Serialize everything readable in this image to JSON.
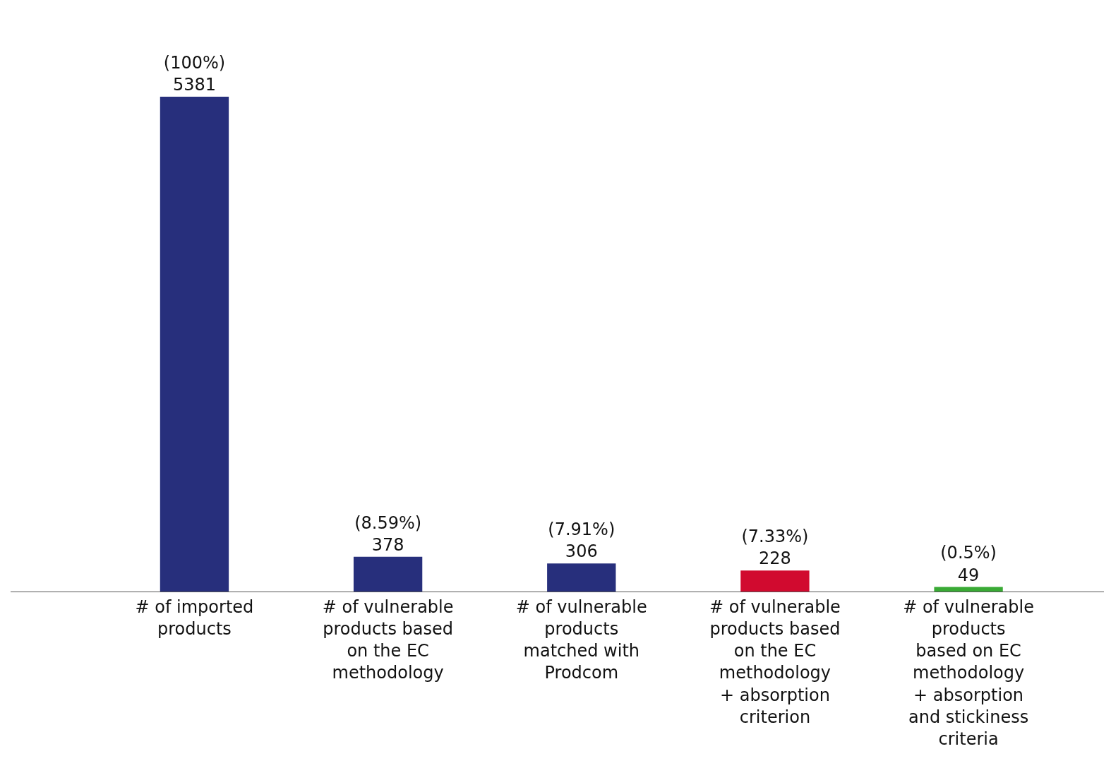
{
  "chart_data": {
    "type": "bar",
    "categories": [
      "# of imported\nproducts",
      "# of vulnerable\nproducts based\non the EC\nmethodology",
      "# of vulnerable\nproducts\nmatched with\nProdcom",
      "# of vulnerable\nproducts based\non the EC\nmethodology\n+ absorption\ncriterion",
      "# of vulnerable\nproducts\nbased on EC\nmethodology\n+ absorption\nand stickiness\ncriteria"
    ],
    "values": [
      5381,
      378,
      306,
      228,
      49
    ],
    "value_labels": [
      "(100%)\n5381",
      "(8.59%)\n378",
      "(7.91%)\n306",
      "(7.33%)\n228",
      "(0.5%)\n49"
    ],
    "colors": [
      "#272f7c",
      "#272f7c",
      "#272f7c",
      "#d10a2f",
      "#3aaa35"
    ]
  }
}
